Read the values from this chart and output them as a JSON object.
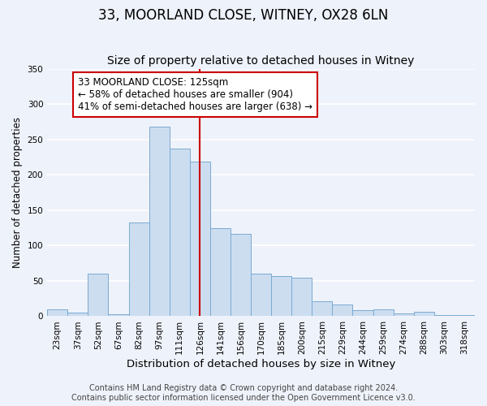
{
  "title": "33, MOORLAND CLOSE, WITNEY, OX28 6LN",
  "subtitle": "Size of property relative to detached houses in Witney",
  "xlabel": "Distribution of detached houses by size in Witney",
  "ylabel": "Number of detached properties",
  "bin_labels": [
    "23sqm",
    "37sqm",
    "52sqm",
    "67sqm",
    "82sqm",
    "97sqm",
    "111sqm",
    "126sqm",
    "141sqm",
    "156sqm",
    "170sqm",
    "185sqm",
    "200sqm",
    "215sqm",
    "229sqm",
    "244sqm",
    "259sqm",
    "274sqm",
    "288sqm",
    "303sqm",
    "318sqm"
  ],
  "bar_heights": [
    10,
    5,
    60,
    3,
    133,
    268,
    237,
    219,
    125,
    116,
    60,
    57,
    55,
    21,
    17,
    9,
    10,
    4,
    6,
    2,
    2
  ],
  "bar_color": "#ccddf0",
  "bar_edge_color": "#7aaad0",
  "vline_x_index": 7,
  "vline_color": "#cc0000",
  "annotation_line1": "33 MOORLAND CLOSE: 125sqm",
  "annotation_line2": "← 58% of detached houses are smaller (904)",
  "annotation_line3": "41% of semi-detached houses are larger (638) →",
  "annotation_box_color": "#ffffff",
  "annotation_box_edge_color": "#cc0000",
  "ylim": [
    0,
    350
  ],
  "yticks": [
    0,
    50,
    100,
    150,
    200,
    250,
    300,
    350
  ],
  "footer_line1": "Contains HM Land Registry data © Crown copyright and database right 2024.",
  "footer_line2": "Contains public sector information licensed under the Open Government Licence v3.0.",
  "bg_color": "#eef2fa",
  "plot_bg_color": "#eef2fa",
  "grid_color": "#ffffff",
  "title_fontsize": 12,
  "subtitle_fontsize": 10,
  "xlabel_fontsize": 9.5,
  "ylabel_fontsize": 8.5,
  "tick_fontsize": 7.5,
  "annotation_fontsize": 8.5,
  "footer_fontsize": 7
}
